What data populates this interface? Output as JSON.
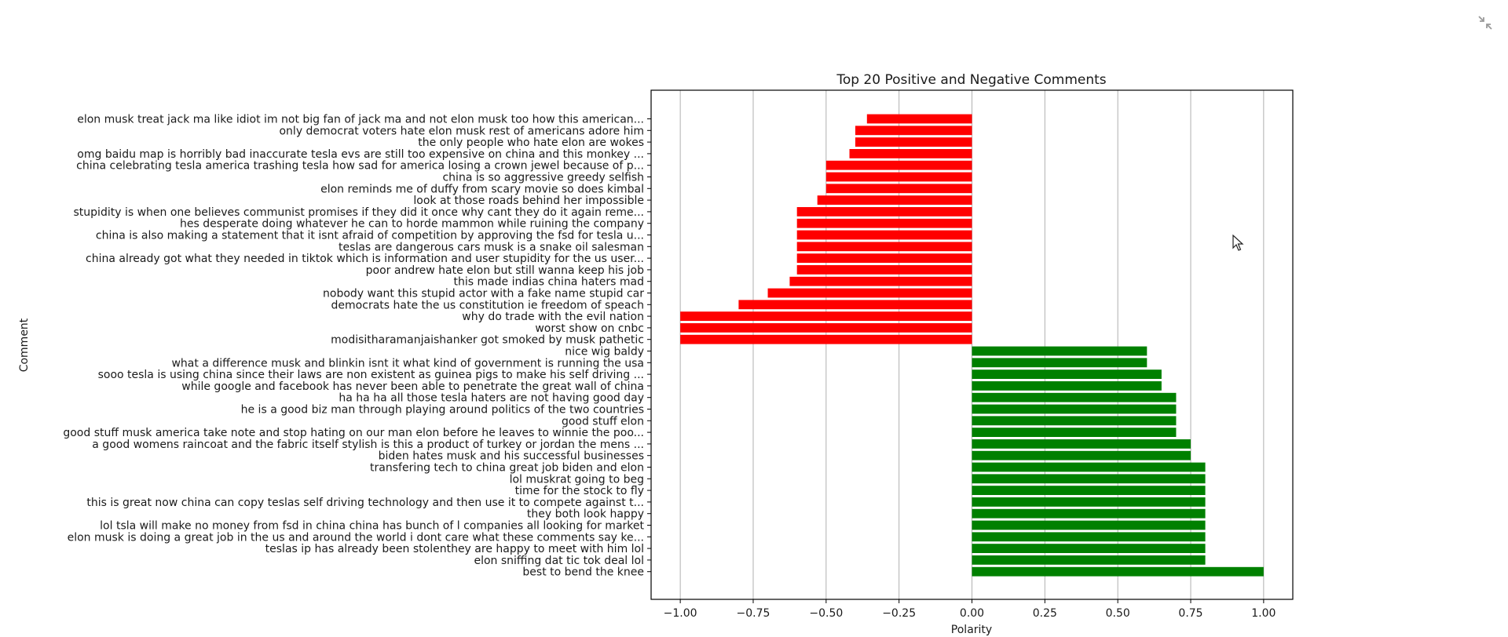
{
  "chart_data": {
    "type": "bar",
    "orientation": "horizontal",
    "title": "Top 20 Positive and Negative Comments",
    "xlabel": "Polarity",
    "ylabel": "Comment",
    "xlim": [
      -1.1,
      1.1
    ],
    "xticks": [
      -1.0,
      -0.75,
      -0.5,
      -0.25,
      0.0,
      0.25,
      0.5,
      0.75,
      1.0
    ],
    "xtick_labels": [
      "−1.00",
      "−0.75",
      "−0.50",
      "−0.25",
      "0.00",
      "0.25",
      "0.50",
      "0.75",
      "1.00"
    ],
    "grid": "x",
    "colors": {
      "negative": "#ff0000",
      "positive": "#008000"
    },
    "categories": [
      "elon musk treat jack ma like idiot im not big fan of jack ma and not elon musk too how this american...",
      "only democrat voters hate elon musk rest of americans adore him",
      "the only people who hate elon are wokes",
      "omg baidu map is horribly bad inaccurate tesla evs are still too expensive on china and this monkey ...",
      "china celebrating tesla america trashing tesla how sad for america losing a crown jewel because of p...",
      "china is so aggressive greedy selfish",
      "elon reminds me of duffy from scary movie so does kimbal",
      "look at those roads behind her impossible",
      "stupidity is when one believes communist promises if they did it once why cant they do it again reme...",
      "hes desperate doing whatever he can to horde mammon while ruining the company",
      "china is also making a statement that it isnt afraid of competition by approving the fsd for tesla u...",
      "teslas are dangerous cars musk is a snake oil salesman",
      "china already got what they needed in tiktok which is information and user stupidity for the us user...",
      "poor andrew hate elon but still wanna keep his job",
      "this made indias china haters mad",
      "nobody want this stupid actor with a fake name stupid car",
      "democrats hate the us constitution ie freedom of speach",
      "why do trade with the evil nation",
      "worst show on cnbc",
      "modisitharamanjaishanker got smoked by musk pathetic",
      "nice wig baldy",
      "what a difference musk and blinkin isnt it what kind of government is running the usa",
      "sooo tesla is using china since their laws are non existent as guinea pigs to make his self driving ...",
      "while google and facebook has never been able to penetrate the great wall of china",
      "ha ha ha all those tesla haters are not having good day",
      "he is a good biz man through playing around politics of the two countries",
      "good stuff elon",
      "good stuff musk america take note and stop hating on our man elon before he leaves to winnie the poo...",
      "a good womens raincoat and the fabric itself stylish is this a product of turkey or jordan the mens ...",
      "biden hates musk and his successful businesses",
      "transfering tech to china great job biden and elon",
      "lol muskrat going to beg",
      "time for the stock to fly",
      "this is great now china can copy teslas self driving technology and then use it to compete against t...",
      "they both look happy",
      "lol tsla will make no money from fsd in china china has bunch of l companies all looking for market",
      "elon musk is doing a great job in the us and around the world i dont care what these comments say ke...",
      "teslas ip has already been stolenthey are happy to meet with him lol",
      "elon sniffing dat tic tok deal lol",
      "best to bend the knee"
    ],
    "values": [
      -0.36,
      -0.4,
      -0.4,
      -0.42,
      -0.5,
      -0.5,
      -0.5,
      -0.53,
      -0.6,
      -0.6,
      -0.6,
      -0.6,
      -0.6,
      -0.6,
      -0.625,
      -0.7,
      -0.8,
      -1.0,
      -1.0,
      -1.0,
      0.6,
      0.6,
      0.65,
      0.65,
      0.7,
      0.7,
      0.7,
      0.7,
      0.75,
      0.75,
      0.8,
      0.8,
      0.8,
      0.8,
      0.8,
      0.8,
      0.8,
      0.8,
      0.8,
      1.0
    ]
  },
  "toolbar": {
    "collapse_icon": "collapse-arrows-icon"
  },
  "pointer": {
    "icon": "mouse-pointer-icon"
  }
}
